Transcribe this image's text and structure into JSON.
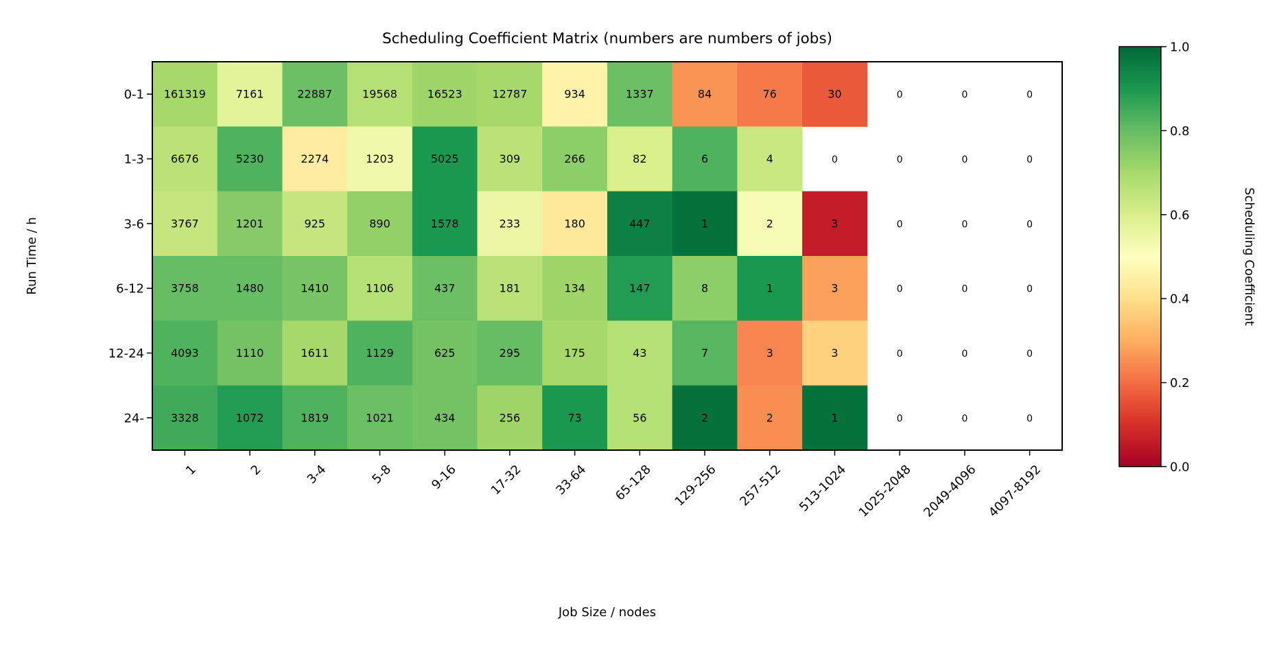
{
  "chart_data": {
    "type": "heatmap",
    "title": "Scheduling Coefficient Matrix (numbers are numbers of jobs)",
    "xlabel": "Job Size / nodes",
    "ylabel": "Run Time / h",
    "x_categories": [
      "1",
      "2",
      "3-4",
      "5-8",
      "9-16",
      "17-32",
      "33-64",
      "65-128",
      "129-256",
      "257-512",
      "513-1024",
      "1025-2048",
      "2049-4096",
      "4097-8192"
    ],
    "y_categories": [
      "0-1",
      "1-3",
      "3-6",
      "6-12",
      "12-24",
      "24-"
    ],
    "counts": [
      [
        161319,
        7161,
        22887,
        19568,
        16523,
        12787,
        934,
        1337,
        84,
        76,
        30,
        0,
        0,
        0
      ],
      [
        6676,
        5230,
        2274,
        1203,
        5025,
        309,
        266,
        82,
        6,
        4,
        0,
        0,
        0,
        0
      ],
      [
        3767,
        1201,
        925,
        890,
        1578,
        233,
        180,
        447,
        1,
        2,
        3,
        0,
        0,
        0
      ],
      [
        3758,
        1480,
        1410,
        1106,
        437,
        181,
        134,
        147,
        8,
        1,
        3,
        0,
        0,
        0
      ],
      [
        4093,
        1110,
        1611,
        1129,
        625,
        295,
        175,
        43,
        7,
        3,
        3,
        0,
        0,
        0
      ],
      [
        3328,
        1072,
        1819,
        1021,
        434,
        256,
        73,
        56,
        2,
        2,
        1,
        0,
        0,
        0
      ]
    ],
    "coefficients": [
      [
        0.7,
        0.57,
        0.79,
        0.67,
        0.71,
        0.7,
        0.46,
        0.79,
        0.26,
        0.22,
        0.17,
        null,
        null,
        null
      ],
      [
        0.66,
        0.83,
        0.44,
        0.54,
        0.9,
        0.66,
        0.74,
        0.6,
        0.83,
        0.63,
        null,
        null,
        null,
        null
      ],
      [
        0.64,
        0.75,
        0.64,
        0.73,
        0.9,
        0.55,
        0.43,
        0.95,
        0.98,
        0.52,
        0.06,
        null,
        null,
        null
      ],
      [
        0.8,
        0.8,
        0.77,
        0.67,
        0.79,
        0.66,
        0.71,
        0.89,
        0.74,
        0.9,
        0.28,
        null,
        null,
        null
      ],
      [
        0.83,
        0.78,
        0.7,
        0.83,
        0.78,
        0.8,
        0.7,
        0.67,
        0.82,
        0.24,
        0.37,
        null,
        null,
        null
      ],
      [
        0.85,
        0.89,
        0.83,
        0.79,
        0.78,
        0.71,
        0.9,
        0.67,
        0.98,
        0.25,
        0.98,
        null,
        null,
        null
      ]
    ],
    "colormap": "RdYlGn",
    "colormap_stops": [
      "#a50026",
      "#d73027",
      "#f46d43",
      "#fdae61",
      "#fee08b",
      "#ffffbf",
      "#d9ef8b",
      "#a6d96a",
      "#66bd63",
      "#1a9850",
      "#006837"
    ],
    "colorbar": {
      "label": "Scheduling Coefficient",
      "range": [
        0.0,
        1.0
      ],
      "ticks": [
        "0.0",
        "0.2",
        "0.4",
        "0.6",
        "0.8",
        "1.0"
      ]
    },
    "grid": false,
    "legend": "colorbar-right"
  }
}
